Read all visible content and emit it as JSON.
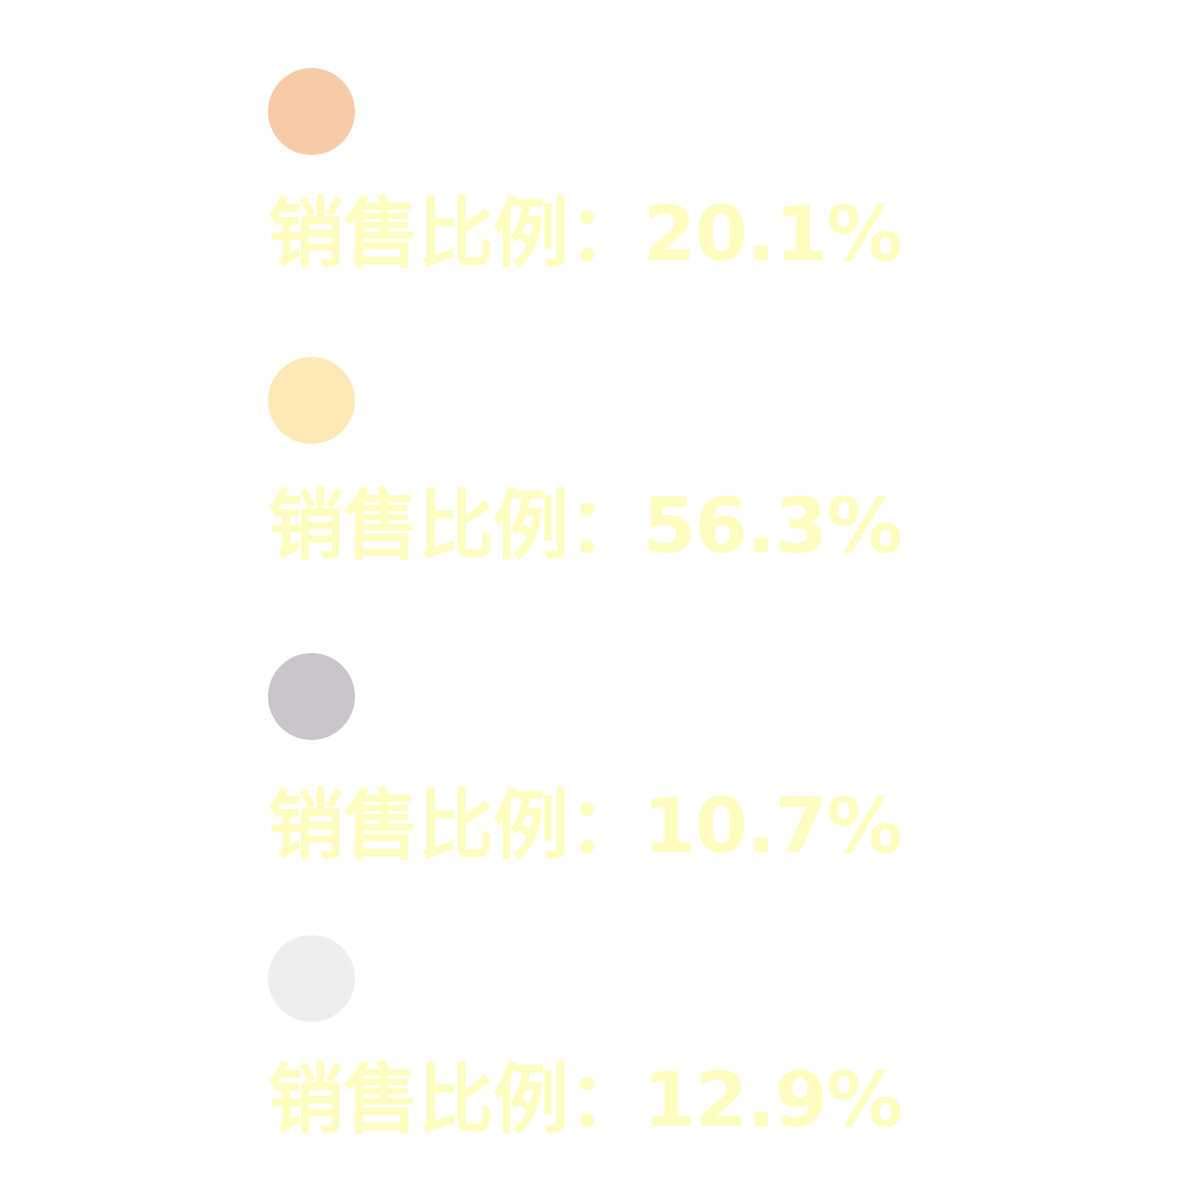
{
  "chart_data": {
    "type": "pie",
    "series": [
      {
        "label": "销售比例：20.1%",
        "value": 20.1,
        "color": "#f8cba8"
      },
      {
        "label": "销售比例：56.3%",
        "value": 56.3,
        "color": "#fde9b5"
      },
      {
        "label": "销售比例：10.7%",
        "value": 10.7,
        "color": "#cac5ca"
      },
      {
        "label": "销售比例：12.9%",
        "value": 12.9,
        "color": "#f0eeed"
      }
    ],
    "label_color": "#fefcbe"
  }
}
